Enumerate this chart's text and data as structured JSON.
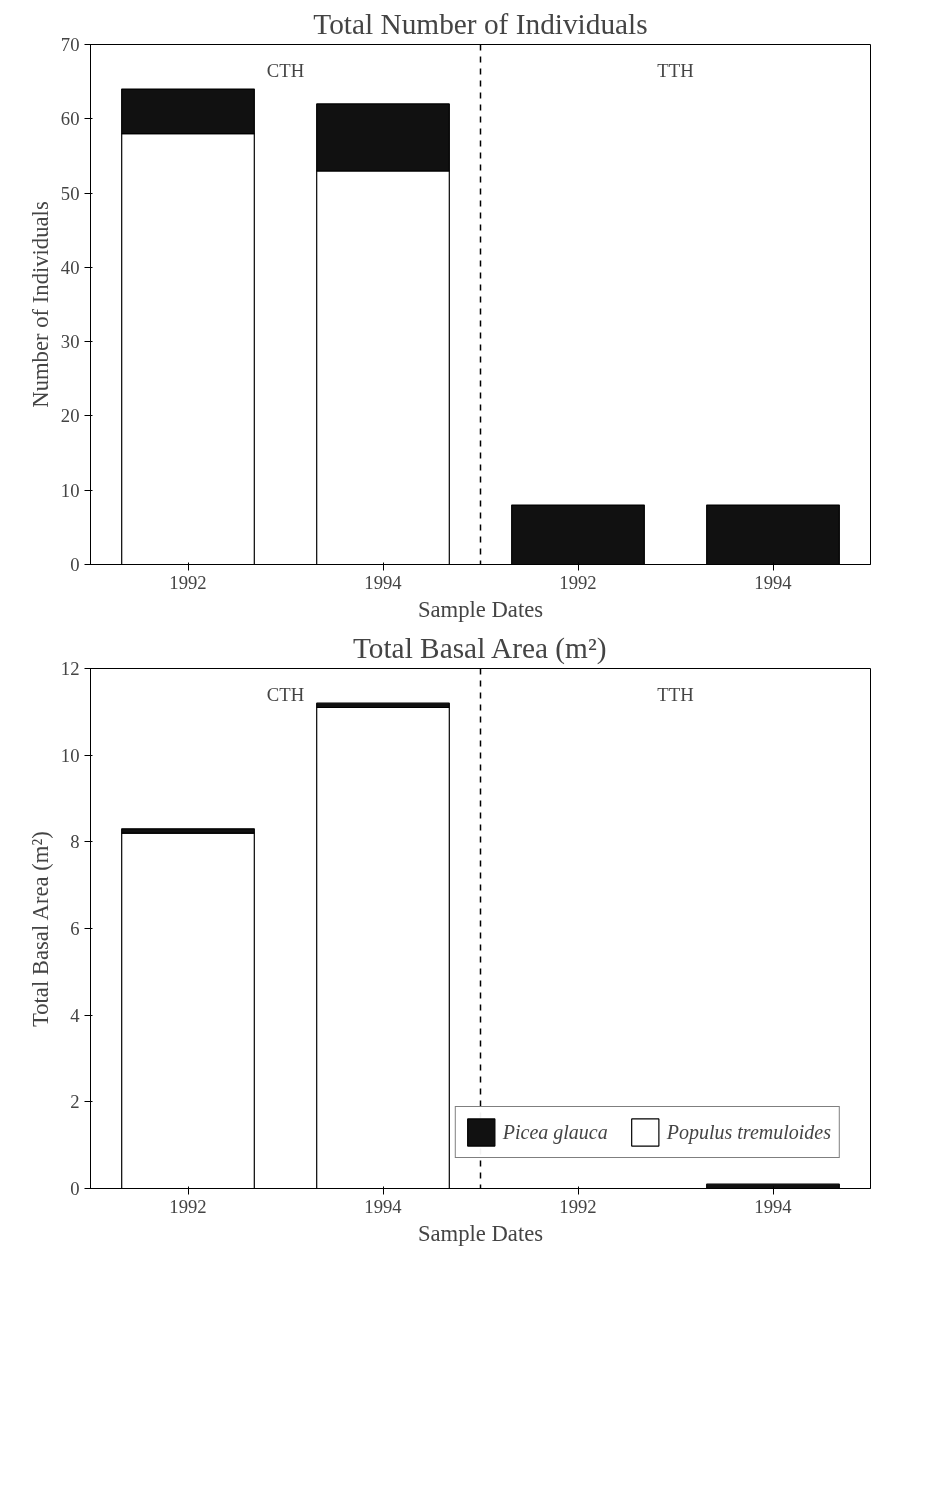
{
  "chart_data": [
    {
      "type": "bar",
      "title": "Total Number of Individuals",
      "xlabel": "Sample Dates",
      "ylabel": "Number of Individuals",
      "categories": [
        "1992",
        "1994",
        "1992",
        "1994"
      ],
      "stacked": true,
      "series": [
        {
          "color": "#ffffff",
          "values": [
            58,
            53,
            0,
            0
          ]
        },
        {
          "color": "#111111",
          "values": [
            6,
            9,
            8,
            8
          ]
        }
      ],
      "ylim": [
        0,
        70
      ],
      "yticks": [
        0,
        10,
        20,
        30,
        40,
        50,
        60,
        70
      ],
      "annotations": [
        "CTH",
        "TTH"
      ]
    },
    {
      "type": "bar",
      "title": "Total Basal Area (m²)",
      "xlabel": "Sample Dates",
      "ylabel": "Total Basal Area (m²)",
      "categories": [
        "1992",
        "1994",
        "1992",
        "1994"
      ],
      "stacked": true,
      "series": [
        {
          "name": "Populus tremuloides",
          "color": "#ffffff",
          "values": [
            8.2,
            11.1,
            0,
            0
          ]
        },
        {
          "name": "Picea glauca",
          "color": "#111111",
          "values": [
            0.1,
            0.1,
            0,
            0.1
          ]
        }
      ],
      "ylim": [
        0,
        12
      ],
      "yticks": [
        0,
        2,
        4,
        6,
        8,
        10,
        12
      ],
      "annotations": [
        "CTH",
        "TTH"
      ],
      "legend": "bottom"
    }
  ]
}
